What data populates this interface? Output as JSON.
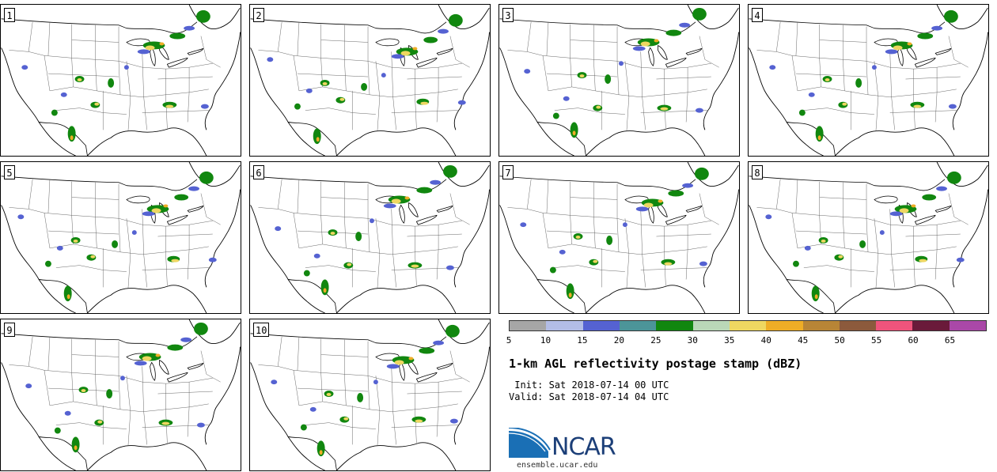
{
  "panels": [
    {
      "label": "1"
    },
    {
      "label": "2"
    },
    {
      "label": "3"
    },
    {
      "label": "4"
    },
    {
      "label": "5"
    },
    {
      "label": "6"
    },
    {
      "label": "7"
    },
    {
      "label": "8"
    },
    {
      "label": "9"
    },
    {
      "label": "10"
    }
  ],
  "colorbar": {
    "colors": [
      "#a6a6a6",
      "#b3bde6",
      "#5562d2",
      "#4c9599",
      "#11870f",
      "#bad8b8",
      "#eed761",
      "#eead26",
      "#b88536",
      "#8c5a3c",
      "#f0547c",
      "#6a1a3a",
      "#aa48a8"
    ],
    "ticks": [
      "5",
      "10",
      "15",
      "20",
      "25",
      "30",
      "35",
      "40",
      "45",
      "50",
      "55",
      "60",
      "65"
    ]
  },
  "title": "1-km AGL reflectivity postage stamp (dBZ)",
  "init": " Init: Sat 2018-07-14 00 UTC",
  "valid": "Valid: Sat 2018-07-14 04 UTC",
  "logo": {
    "text": "NCAR",
    "url": "ensemble.ucar.edu"
  }
}
